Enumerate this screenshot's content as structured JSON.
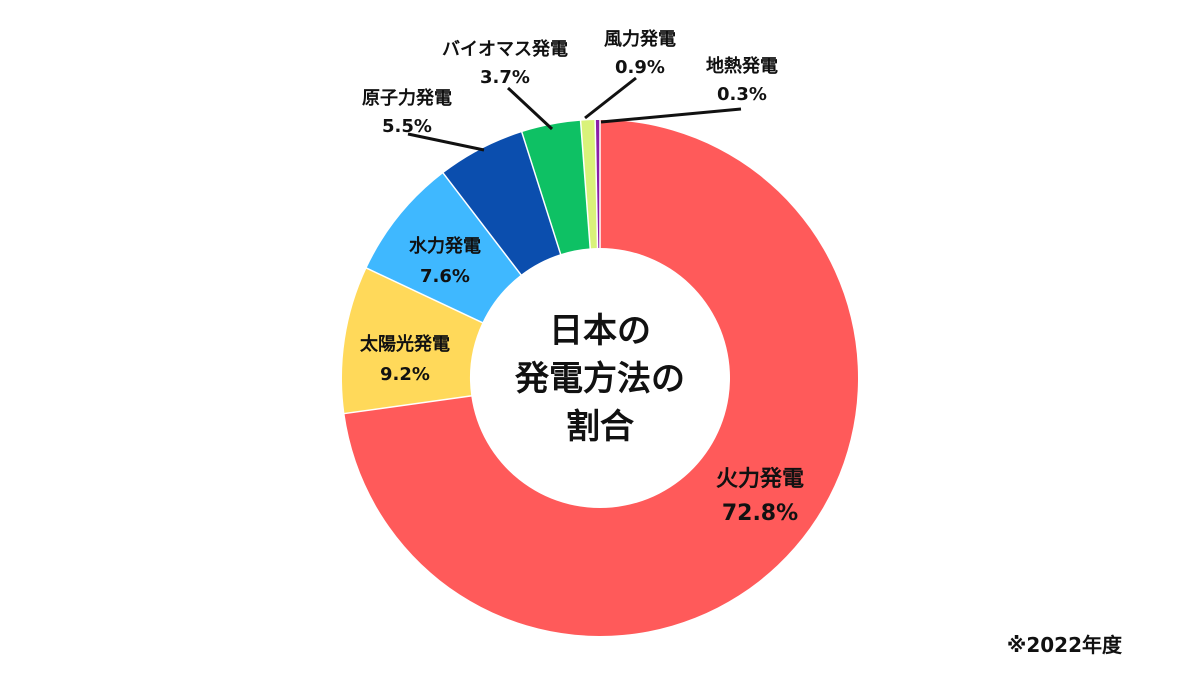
{
  "chart_data": {
    "type": "pie",
    "title": "日本の発電方法の割合",
    "title_lines": [
      "日本の",
      "発電方法の",
      "割合"
    ],
    "unit": "%",
    "slices": [
      {
        "label": "火力発電",
        "value": 72.8,
        "value_label": "72.8%",
        "color": "#FF5A5A"
      },
      {
        "label": "太陽光発電",
        "value": 9.2,
        "value_label": "9.2%",
        "color": "#FFD95A"
      },
      {
        "label": "水力発電",
        "value": 7.6,
        "value_label": "7.6%",
        "color": "#3FB8FF"
      },
      {
        "label": "原子力発電",
        "value": 5.5,
        "value_label": "5.5%",
        "color": "#0B4EAE"
      },
      {
        "label": "バイオマス発電",
        "value": 3.7,
        "value_label": "3.7%",
        "color": "#0EC164"
      },
      {
        "label": "風力発電",
        "value": 0.9,
        "value_label": "0.9%",
        "color": "#D9F27A"
      },
      {
        "label": "地熱発電",
        "value": 0.3,
        "value_label": "0.3%",
        "color": "#8B1FA8"
      }
    ]
  },
  "note": "※2022年度"
}
